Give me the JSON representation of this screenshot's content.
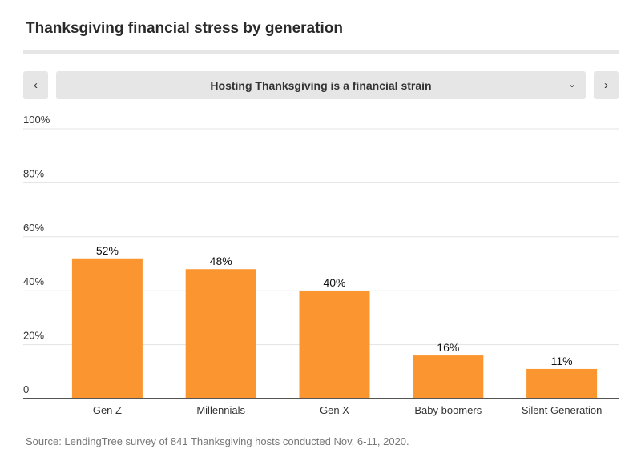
{
  "title": "Thanksgiving financial stress by generation",
  "selector": {
    "prev_icon": "chevron-left-icon",
    "next_icon": "chevron-right-icon",
    "dropdown_icon": "chevron-down-icon",
    "selected": "Hosting Thanksgiving is a financial strain"
  },
  "source": "Source: LendingTree survey of 841 Thanksgiving hosts conducted Nov. 6-11, 2020.",
  "chart_data": {
    "type": "bar",
    "categories": [
      "Gen Z",
      "Millennials",
      "Gen X",
      "Baby boomers",
      "Silent Generation"
    ],
    "values": [
      52,
      48,
      40,
      16,
      11
    ],
    "data_labels": [
      "52%",
      "48%",
      "40%",
      "16%",
      "11%"
    ],
    "yticks": [
      0,
      20,
      40,
      60,
      80,
      100
    ],
    "ytick_labels": [
      "0",
      "20%",
      "40%",
      "60%",
      "80%",
      "100%"
    ],
    "ylim": [
      0,
      100
    ],
    "grid": true,
    "bar_color": "#fb9530"
  }
}
